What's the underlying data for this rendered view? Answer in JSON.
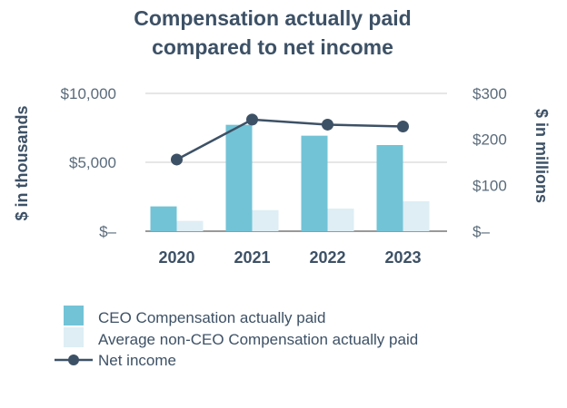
{
  "chart_data": {
    "type": "bar",
    "title": [
      "Compensation actually paid",
      "compared to net income"
    ],
    "categories": [
      "2020",
      "2021",
      "2022",
      "2023"
    ],
    "series": [
      {
        "name": "CEO Compensation actually paid",
        "axis": "left",
        "type": "bar",
        "color": "#72c3d6",
        "values": [
          1800,
          7720,
          6930,
          6250
        ]
      },
      {
        "name": "Average non-CEO Compensation actually paid",
        "axis": "left",
        "type": "bar",
        "color": "#deeef4",
        "values": [
          750,
          1530,
          1640,
          2170
        ]
      },
      {
        "name": "Net income",
        "axis": "right",
        "type": "line",
        "color": "#3d5166",
        "values": [
          156,
          243,
          232,
          228
        ]
      }
    ],
    "ylabel_left": "$ in thousands",
    "ylabel_right": "$ in millions",
    "ylim_left": [
      0,
      10000
    ],
    "ylim_right": [
      0,
      300
    ],
    "yticks_left": [
      "$–",
      "$5,000",
      "$10,000"
    ],
    "yticks_right": [
      "$–",
      "$100",
      "$200",
      "$300"
    ],
    "grid": true,
    "legend_placement": "bottom-left"
  }
}
